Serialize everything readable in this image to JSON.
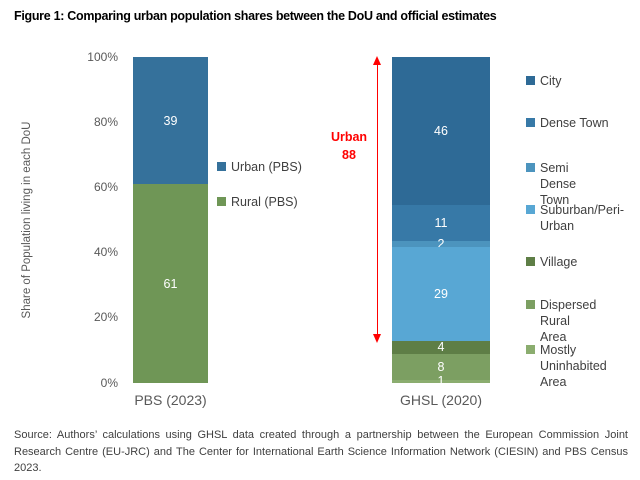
{
  "figure": {
    "title": "Figure 1: Comparing urban population shares between the DoU and official estimates",
    "source_note": "Source: Authors’ calculations using GHSL data created through a partnership between the European Commission Joint Research Centre (EU-JRC) and The Center for International Earth Science Information Network (CIESIN) and PBS Census 2023."
  },
  "chart_data": {
    "type": "bar",
    "subtype": "stacked-100pct-column",
    "title": "",
    "xlabel": "",
    "ylabel": "Share of Population living in each DoU",
    "ylim": [
      0,
      100
    ],
    "grid": false,
    "y_ticks": [
      {
        "label": "100%",
        "value": 100
      },
      {
        "label": "80%",
        "value": 80
      },
      {
        "label": "60%",
        "value": 60
      },
      {
        "label": "40%",
        "value": 40
      },
      {
        "label": "20%",
        "value": 20
      },
      {
        "label": "0%",
        "value": 0
      }
    ],
    "categories": [
      "PBS (2023)",
      "GHSL (2020)"
    ],
    "bars": [
      {
        "category": "PBS (2023)",
        "segments": [
          {
            "name": "Urban (PBS)",
            "value": 39,
            "color": "#35719B"
          },
          {
            "name": "Rural (PBS)",
            "value": 61,
            "color": "#6F9656"
          }
        ]
      },
      {
        "category": "GHSL (2020)",
        "segments": [
          {
            "name": "City",
            "value": 46,
            "color": "#2E6A96"
          },
          {
            "name": "Dense Town",
            "value": 11,
            "color": "#3779A7"
          },
          {
            "name": "Semi Dense Town",
            "value": 2,
            "color": "#4C94BE"
          },
          {
            "name": "Suburban/Peri-Urban",
            "value": 29,
            "color": "#58A7D4"
          },
          {
            "name": "Village",
            "value": 4,
            "color": "#5E7E46"
          },
          {
            "name": "Dispersed Rural Area",
            "value": 8,
            "color": "#7C9F62"
          },
          {
            "name": "Mostly Uninhabited Area",
            "value": 1,
            "color": "#8BAD6F"
          }
        ]
      }
    ],
    "annotation": {
      "lines": [
        "Urban",
        "88"
      ],
      "color": "#FF0000",
      "arrow": {
        "from_percent": 100,
        "to_percent": 12
      }
    },
    "legend_left": [
      {
        "label": "Urban (PBS)",
        "lines": [
          "Urban (PBS)"
        ],
        "color": "#35719B"
      },
      {
        "label": "Rural (PBS)",
        "lines": [
          "Rural (PBS)"
        ],
        "color": "#6F9656"
      }
    ],
    "legend_right": [
      {
        "label": "City",
        "lines": [
          "City"
        ],
        "color": "#2E6A96"
      },
      {
        "label": "Dense Town",
        "lines": [
          "Dense Town"
        ],
        "color": "#3779A7"
      },
      {
        "label": "Semi Dense Town",
        "lines": [
          "Semi Dense",
          "Town"
        ],
        "color": "#4C94BE"
      },
      {
        "label": "Suburban/Peri-Urban",
        "lines": [
          "Suburban/Peri-",
          "Urban"
        ],
        "color": "#58A7D4"
      },
      {
        "label": "Village",
        "lines": [
          "Village"
        ],
        "color": "#5E7E46"
      },
      {
        "label": "Dispersed Rural Area",
        "lines": [
          "Dispersed Rural",
          "Area"
        ],
        "color": "#7C9F62"
      },
      {
        "label": "Mostly Uninhabited Area",
        "lines": [
          "Mostly",
          "Uninhabited Area"
        ],
        "color": "#8BAD6F"
      }
    ]
  }
}
